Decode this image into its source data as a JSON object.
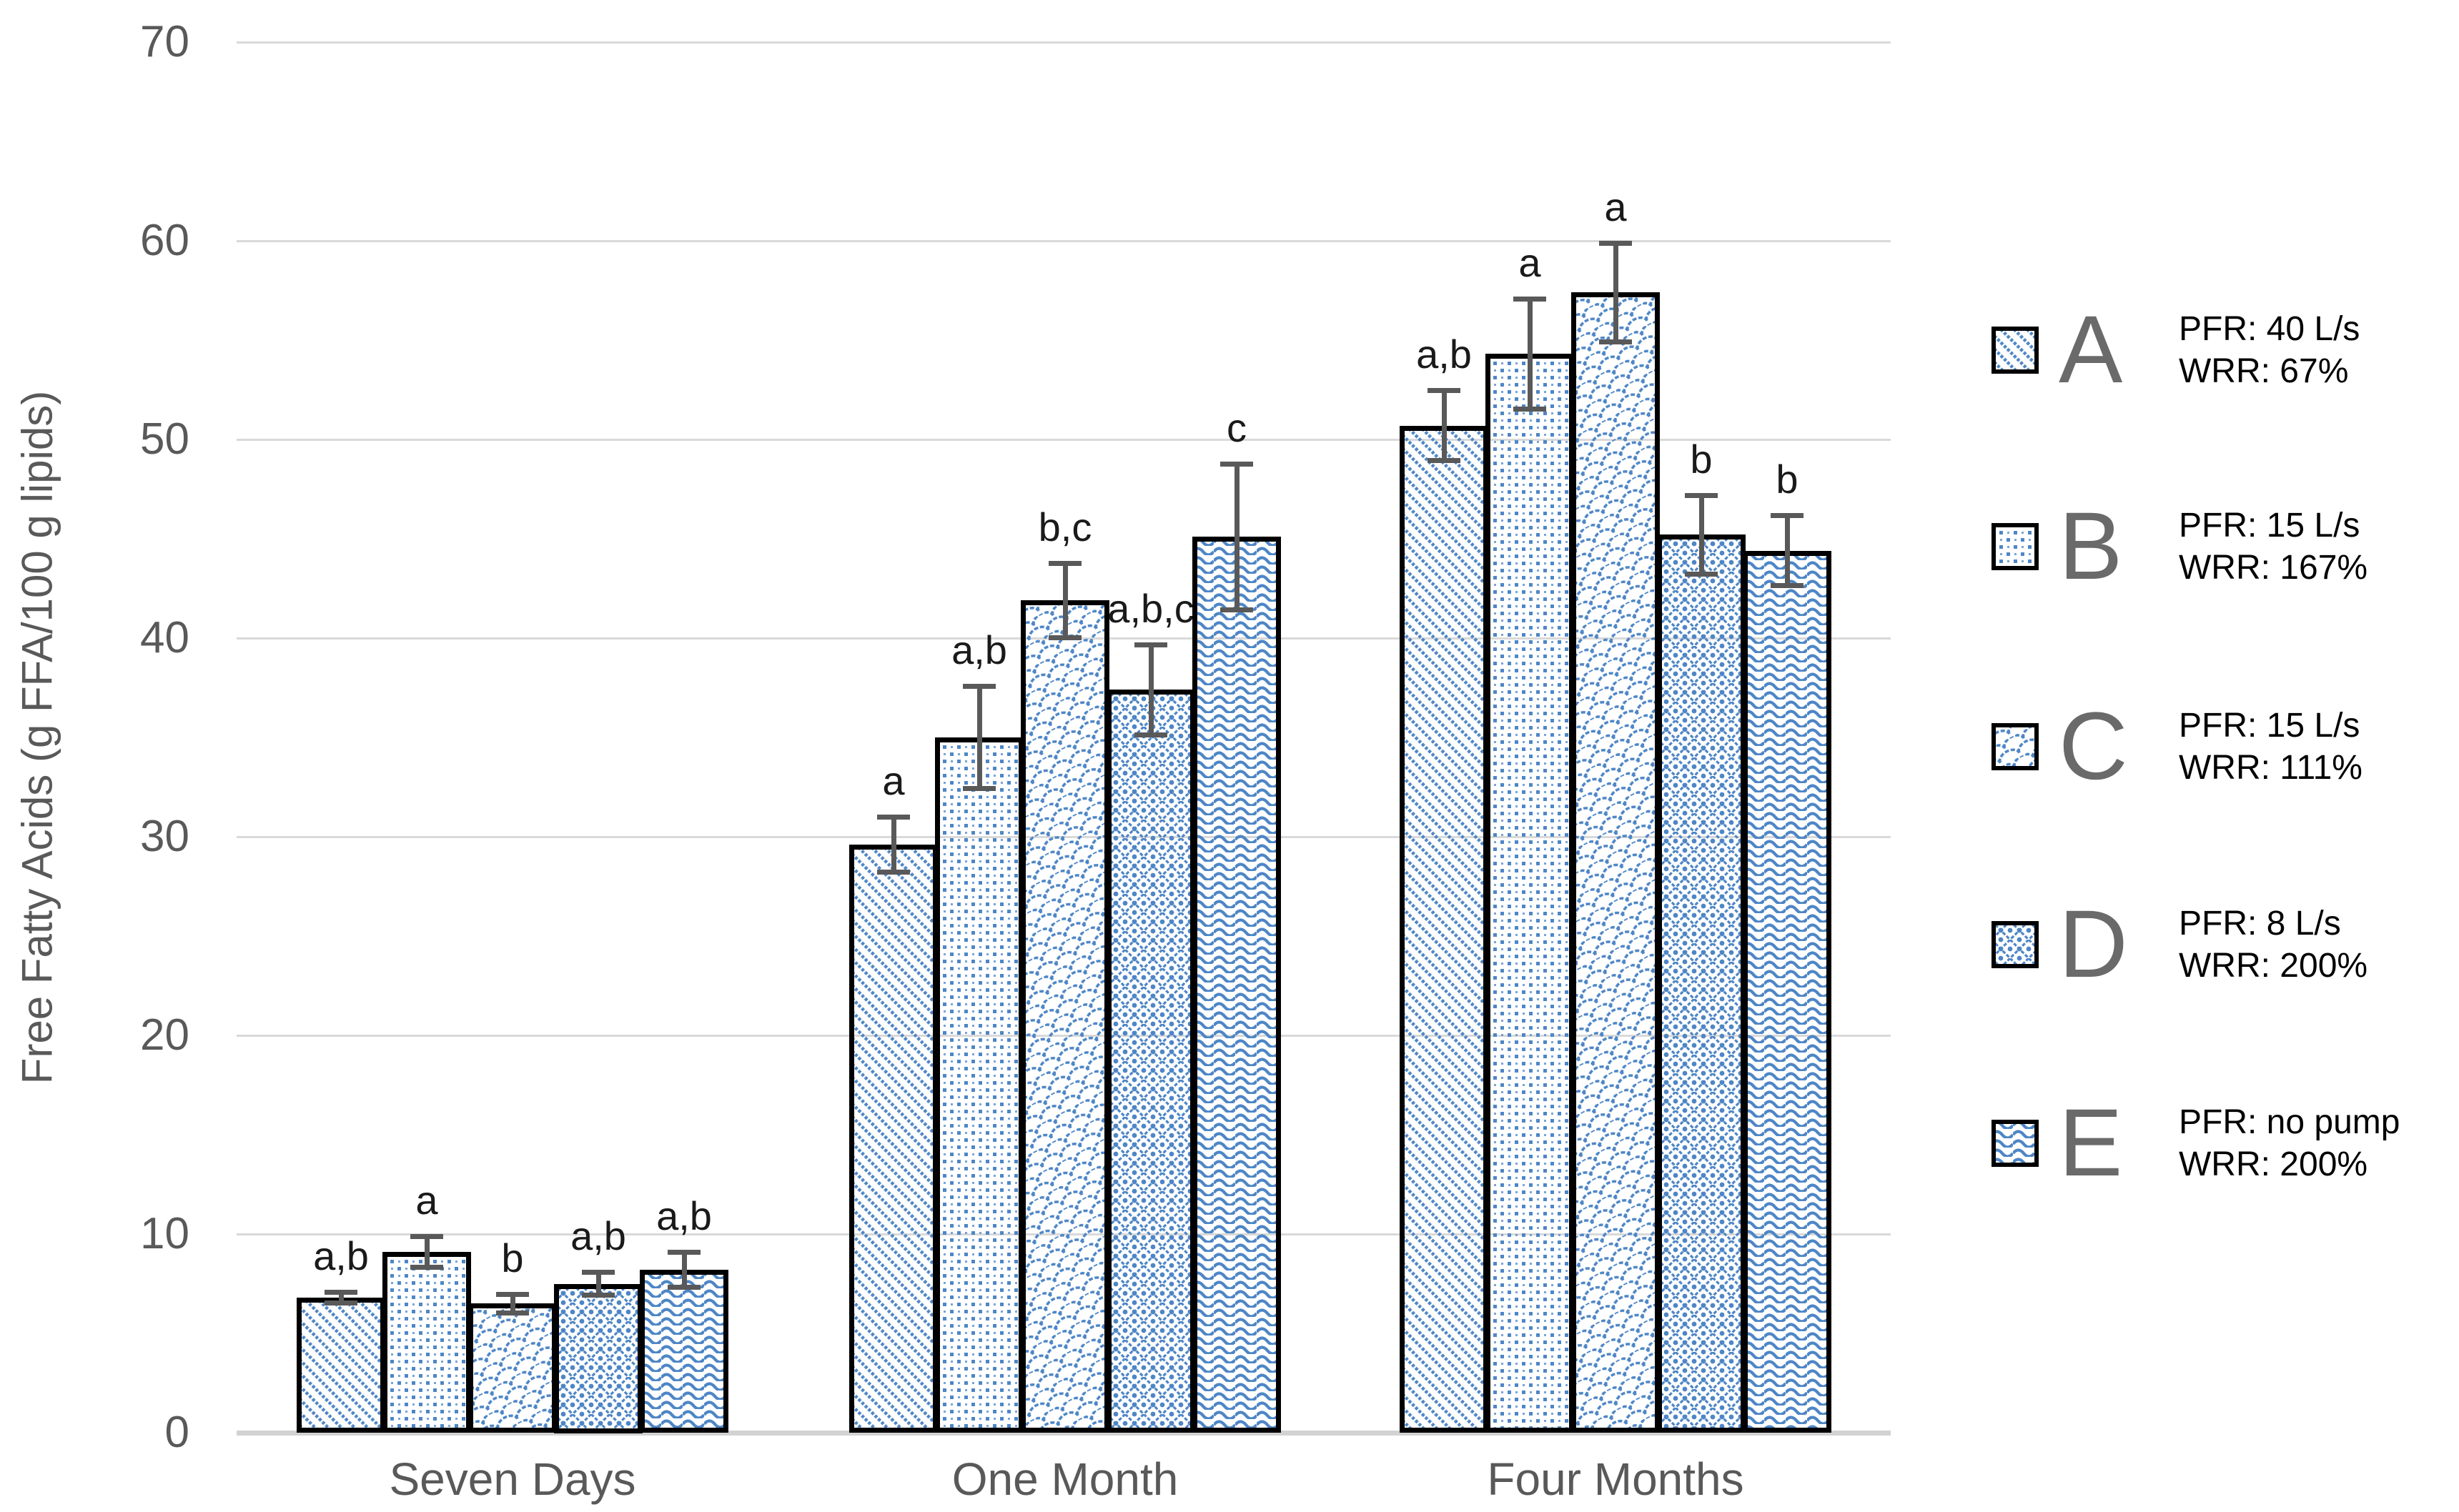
{
  "chart_data": {
    "type": "bar",
    "title": "",
    "ylabel": "Free Fatty Acids (g FFA/100 g lipids)",
    "ylim": [
      0,
      70
    ],
    "yticks": [
      0,
      10,
      20,
      30,
      40,
      50,
      60,
      70
    ],
    "grid": "horizontal",
    "legend_position": "right",
    "categories": [
      "Seven Days",
      "One Month",
      "Four Months"
    ],
    "series": [
      {
        "key": "A",
        "pattern": "diagonal-stripes",
        "values": [
          6.8,
          29.6,
          50.7
        ],
        "errors": [
          0.4,
          1.5,
          1.9
        ],
        "sig_letters": [
          "a,b",
          "a",
          "a,b"
        ]
      },
      {
        "key": "B",
        "pattern": "dot-grid",
        "values": [
          9.1,
          35.0,
          54.3
        ],
        "errors": [
          0.9,
          2.7,
          2.9
        ],
        "sig_letters": [
          "a",
          "a,b",
          "a"
        ]
      },
      {
        "key": "C",
        "pattern": "scale-hooks",
        "values": [
          6.5,
          41.9,
          57.4
        ],
        "errors": [
          0.6,
          2.0,
          2.6
        ],
        "sig_letters": [
          "b",
          "b,c",
          "a"
        ]
      },
      {
        "key": "D",
        "pattern": "diamond-lattice",
        "values": [
          7.5,
          37.4,
          45.2
        ],
        "errors": [
          0.7,
          2.4,
          2.1
        ],
        "sig_letters": [
          "a,b",
          "a,b,c",
          "b"
        ]
      },
      {
        "key": "E",
        "pattern": "horizontal-waves",
        "values": [
          8.2,
          45.1,
          44.4
        ],
        "errors": [
          1.0,
          3.8,
          1.9
        ],
        "sig_letters": [
          "a,b",
          "c",
          "b"
        ]
      }
    ],
    "legend": [
      {
        "key": "A",
        "line1": "PFR: 40 L/s",
        "line2": "WRR: 67%"
      },
      {
        "key": "B",
        "line1": "PFR: 15 L/s",
        "line2": "WRR: 167%"
      },
      {
        "key": "C",
        "line1": "PFR: 15 L/s",
        "line2": "WRR: 111%"
      },
      {
        "key": "D",
        "line1": "PFR: 8 L/s",
        "line2": "WRR: 200%"
      },
      {
        "key": "E",
        "line1": "PFR: no pump",
        "line2": "WRR: 200%"
      }
    ],
    "colors": {
      "pattern_blue": "#4E86C6",
      "bar_border": "#000000",
      "error_bar": "#595959",
      "gridline": "#D9D9D9",
      "baseline": "#D2D2D2",
      "axis_text": "#595959",
      "sig_letter_text": "#1a1a1a",
      "legend_letter": "#6a6a6a",
      "legend_text": "#000000",
      "background": "#ffffff"
    }
  }
}
